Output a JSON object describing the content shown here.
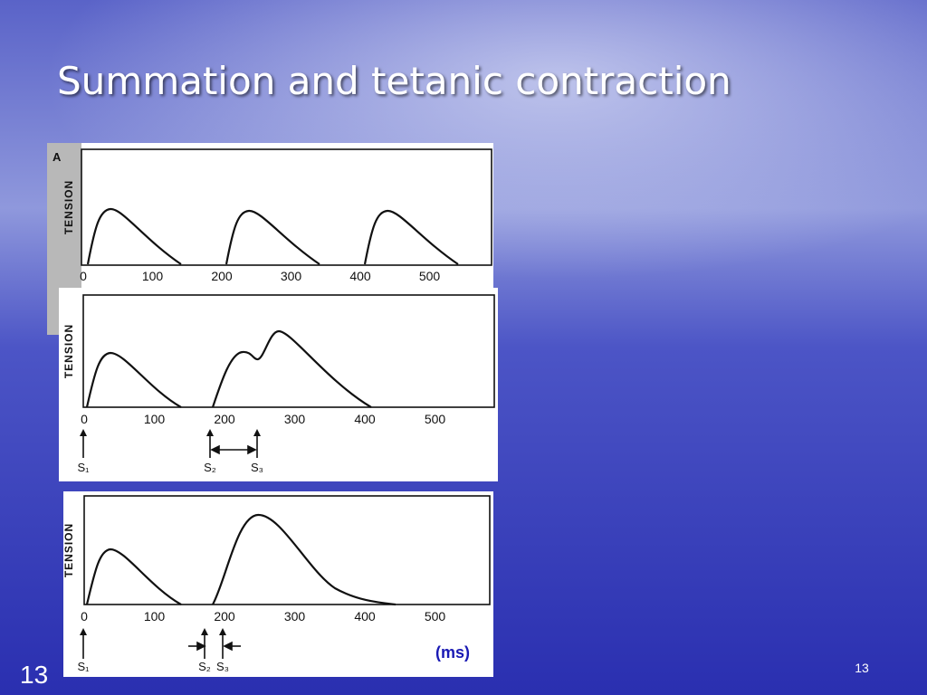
{
  "slide": {
    "title": "Summation and tetanic contraction",
    "slide_number": "13",
    "page_number": "13"
  },
  "figure": {
    "panel_label": "A",
    "panels": [
      {
        "y_label": "TENSION",
        "ticks": [
          0,
          100,
          200,
          300,
          400,
          500
        ]
      },
      {
        "y_label": "TENSION",
        "ticks": [
          0,
          100,
          200,
          300,
          400,
          500
        ],
        "stimuli": [
          "S₁",
          "S₂",
          "S₃"
        ]
      },
      {
        "y_label": "TENSION",
        "ticks": [
          0,
          100,
          200,
          300,
          400,
          500
        ],
        "stimuli": [
          "S₁",
          "S₂",
          "S₃"
        ],
        "unit": "(ms)"
      }
    ]
  }
}
